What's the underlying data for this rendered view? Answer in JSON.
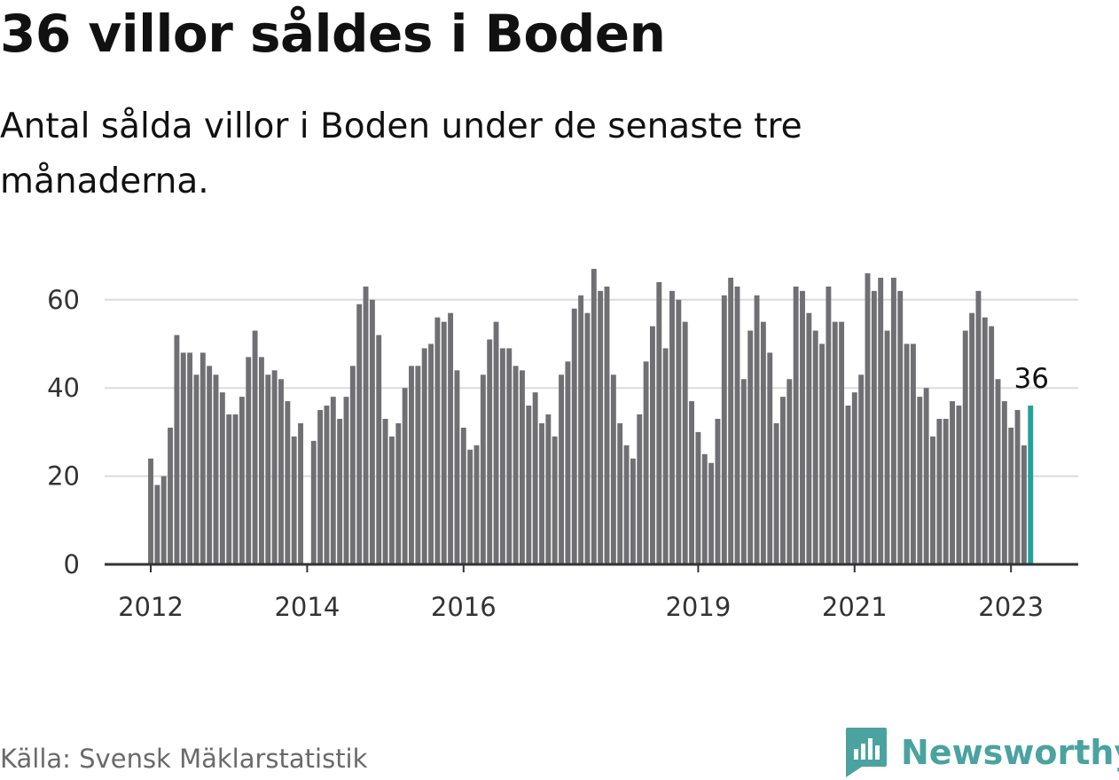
{
  "title": "36 villor såldes i Boden",
  "subtitle": "Antal sålda villor i Boden under de senaste tre månaderna.",
  "source": "Källa: Svensk Mäklarstatistik",
  "brand": {
    "name": "Newsworthy",
    "icon": "bar-chart-logo-icon"
  },
  "colors": {
    "bar": "#707074",
    "highlight": "#22a09a",
    "grid": "#dcdcdc",
    "axis": "#333333",
    "brand": "#4aa3a0"
  },
  "chart_data": {
    "type": "bar",
    "title": "36 villor såldes i Boden",
    "ylim": [
      0,
      70
    ],
    "yticks": [
      0,
      20,
      40,
      60
    ],
    "xticks": [
      {
        "label": "2012",
        "index": 0
      },
      {
        "label": "2014",
        "index": 24
      },
      {
        "label": "2016",
        "index": 48
      },
      {
        "label": "2019",
        "index": 84
      },
      {
        "label": "2021",
        "index": 108
      },
      {
        "label": "2023",
        "index": 132
      }
    ],
    "grid": true,
    "start": "2012-01",
    "values": [
      24,
      18,
      20,
      31,
      52,
      48,
      48,
      43,
      48,
      45,
      43,
      39,
      34,
      34,
      38,
      47,
      53,
      47,
      43,
      44,
      42,
      37,
      29,
      32,
      0,
      28,
      35,
      36,
      38,
      33,
      38,
      45,
      59,
      63,
      60,
      52,
      33,
      29,
      32,
      40,
      45,
      45,
      49,
      50,
      56,
      55,
      57,
      44,
      31,
      26,
      27,
      43,
      51,
      55,
      49,
      49,
      45,
      44,
      36,
      39,
      32,
      34,
      29,
      43,
      46,
      58,
      61,
      57,
      67,
      62,
      63,
      43,
      32,
      27,
      24,
      34,
      46,
      54,
      64,
      49,
      62,
      60,
      55,
      37,
      30,
      25,
      23,
      33,
      61,
      65,
      63,
      42,
      53,
      61,
      55,
      48,
      32,
      38,
      42,
      63,
      62,
      57,
      53,
      50,
      63,
      55,
      55,
      36,
      39,
      43,
      66,
      62,
      65,
      53,
      65,
      62,
      50,
      50,
      38,
      40,
      29,
      33,
      33,
      37,
      36,
      53,
      57,
      62,
      56,
      54,
      42,
      37,
      31,
      35,
      27,
      36
    ],
    "highlight_index": 135,
    "annotation": {
      "text": "36",
      "index": 135
    }
  }
}
